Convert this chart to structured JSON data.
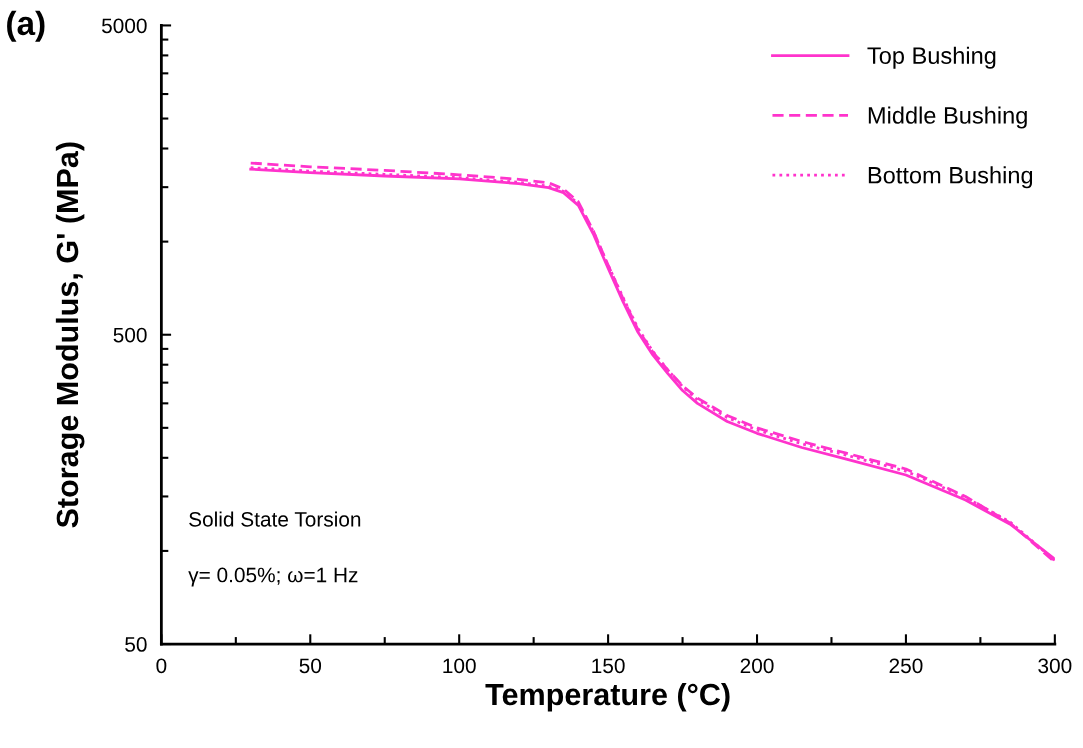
{
  "chart_data": {
    "type": "line",
    "xlabel": "Temperature (°C)",
    "ylabel": "Storage Modulus, G' (MPa)",
    "annotations": [
      "(a)",
      "Solid State Torsion",
      "γ= 0.05%; ω=1 Hz"
    ],
    "x": [
      30,
      50,
      75,
      100,
      120,
      130,
      135,
      140,
      145,
      150,
      155,
      160,
      165,
      170,
      175,
      180,
      190,
      200,
      215,
      230,
      250,
      270,
      285,
      300
    ],
    "series": [
      {
        "name": "Top Bushing",
        "color": "#ff33cc",
        "line_style": "solid",
        "values": [
          1715,
          1670,
          1630,
          1595,
          1540,
          1495,
          1440,
          1310,
          1060,
          820,
          640,
          510,
          430,
          375,
          330,
          300,
          262,
          240,
          216,
          198,
          176,
          146,
          122,
          94
        ]
      },
      {
        "name": "Middle Bushing",
        "color": "#ff33cc",
        "line_style": "dashed",
        "values": [
          1795,
          1745,
          1700,
          1645,
          1590,
          1550,
          1480,
          1345,
          1085,
          840,
          655,
          520,
          440,
          385,
          342,
          312,
          274,
          250,
          226,
          207,
          184,
          150,
          123,
          92
        ]
      },
      {
        "name": "Bottom Bushing",
        "color": "#ff33cc",
        "line_style": "dotted",
        "values": [
          1735,
          1690,
          1650,
          1610,
          1555,
          1510,
          1455,
          1325,
          1080,
          840,
          660,
          525,
          442,
          385,
          340,
          308,
          270,
          246,
          222,
          204,
          181,
          149,
          124,
          93
        ]
      }
    ],
    "log": "y",
    "xlim": [
      0,
      300
    ],
    "ylim": [
      50,
      5000
    ],
    "xticks": [
      0,
      {
        "value": 25,
        "label": null
      },
      50,
      {
        "value": 75,
        "label": null
      },
      100,
      {
        "value": 125,
        "label": null
      },
      150,
      {
        "value": 175,
        "label": null
      },
      200,
      {
        "value": 225,
        "label": null
      },
      250,
      {
        "value": 275,
        "label": null
      },
      300
    ],
    "yticks": [
      50,
      {
        "value": 100,
        "label": null
      },
      {
        "value": 150,
        "label": null
      },
      {
        "value": 200,
        "label": null
      },
      {
        "value": 250,
        "label": null
      },
      {
        "value": 300,
        "label": null
      },
      {
        "value": 350,
        "label": null
      },
      {
        "value": 400,
        "label": null
      },
      {
        "value": 450,
        "label": null
      },
      500,
      {
        "value": 1000,
        "label": null
      },
      {
        "value": 1500,
        "label": null
      },
      {
        "value": 2000,
        "label": null
      },
      {
        "value": 2500,
        "label": null
      },
      {
        "value": 3000,
        "label": null
      },
      {
        "value": 3500,
        "label": null
      },
      {
        "value": 4000,
        "label": null
      },
      {
        "value": 4500,
        "label": null
      },
      5000
    ],
    "grid": false,
    "legend": "top right"
  }
}
